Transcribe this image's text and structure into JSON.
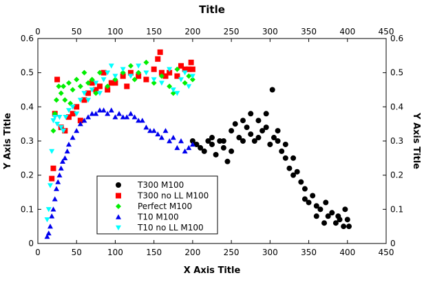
{
  "chart_data": {
    "type": "scatter",
    "title": "Title",
    "xlabel": "X Axis Title",
    "ylabel": "Y Axis Title",
    "y2label": "Y Axis Title",
    "xlim": [
      0,
      450
    ],
    "ylim": [
      0,
      0.6
    ],
    "x_ticks": [
      "0",
      "50",
      "100",
      "150",
      "200",
      "250",
      "300",
      "350",
      "400",
      "450"
    ],
    "x_top_ticks": [
      "0",
      "50",
      "100",
      "150",
      "200",
      "250",
      "300",
      "350",
      "400",
      "450"
    ],
    "y_ticks": [
      "0",
      "0.1",
      "0.2",
      "0.3",
      "0.4",
      "0.5",
      "0.6"
    ],
    "y_right_ticks": [
      "0",
      "0.1",
      "0.2",
      "0.3",
      "0.4",
      "0.5",
      "0.6"
    ],
    "grid": false,
    "legend_position": "lower-left",
    "series": [
      {
        "name": "T300 M100",
        "marker": "circle",
        "color": "#000000",
        "points": [
          [
            200,
            0.3
          ],
          [
            205,
            0.29
          ],
          [
            210,
            0.28
          ],
          [
            215,
            0.27
          ],
          [
            220,
            0.3
          ],
          [
            225,
            0.29
          ],
          [
            230,
            0.26
          ],
          [
            235,
            0.3
          ],
          [
            240,
            0.28
          ],
          [
            245,
            0.24
          ],
          [
            250,
            0.33
          ],
          [
            255,
            0.35
          ],
          [
            260,
            0.31
          ],
          [
            265,
            0.36
          ],
          [
            270,
            0.34
          ],
          [
            275,
            0.38
          ],
          [
            280,
            0.3
          ],
          [
            285,
            0.36
          ],
          [
            290,
            0.33
          ],
          [
            295,
            0.38
          ],
          [
            300,
            0.29
          ],
          [
            303,
            0.45
          ],
          [
            305,
            0.31
          ],
          [
            310,
            0.3
          ],
          [
            315,
            0.27
          ],
          [
            320,
            0.25
          ],
          [
            325,
            0.22
          ],
          [
            330,
            0.25
          ],
          [
            335,
            0.21
          ],
          [
            340,
            0.18
          ],
          [
            345,
            0.16
          ],
          [
            350,
            0.12
          ],
          [
            355,
            0.14
          ],
          [
            360,
            0.08
          ],
          [
            365,
            0.1
          ],
          [
            370,
            0.06
          ],
          [
            375,
            0.08
          ],
          [
            380,
            0.09
          ],
          [
            385,
            0.06
          ],
          [
            390,
            0.07
          ],
          [
            395,
            0.05
          ],
          [
            400,
            0.07
          ],
          [
            402,
            0.05
          ],
          [
            225,
            0.31
          ],
          [
            240,
            0.3
          ],
          [
            250,
            0.27
          ],
          [
            265,
            0.3
          ],
          [
            275,
            0.32
          ],
          [
            285,
            0.31
          ],
          [
            295,
            0.34
          ],
          [
            310,
            0.33
          ],
          [
            320,
            0.29
          ],
          [
            330,
            0.2
          ],
          [
            345,
            0.13
          ],
          [
            360,
            0.11
          ],
          [
            372,
            0.12
          ],
          [
            388,
            0.08
          ],
          [
            397,
            0.1
          ]
        ]
      },
      {
        "name": "T300 no LL M100",
        "marker": "square",
        "color": "#ff0000",
        "points": [
          [
            18,
            0.19
          ],
          [
            20,
            0.22
          ],
          [
            22,
            0.38
          ],
          [
            25,
            0.48
          ],
          [
            30,
            0.34
          ],
          [
            35,
            0.33
          ],
          [
            40,
            0.37
          ],
          [
            45,
            0.38
          ],
          [
            50,
            0.4
          ],
          [
            55,
            0.36
          ],
          [
            60,
            0.42
          ],
          [
            65,
            0.44
          ],
          [
            70,
            0.47
          ],
          [
            75,
            0.45
          ],
          [
            80,
            0.46
          ],
          [
            85,
            0.5
          ],
          [
            90,
            0.45
          ],
          [
            95,
            0.47
          ],
          [
            100,
            0.47
          ],
          [
            110,
            0.49
          ],
          [
            115,
            0.46
          ],
          [
            120,
            0.5
          ],
          [
            130,
            0.49
          ],
          [
            140,
            0.48
          ],
          [
            150,
            0.51
          ],
          [
            155,
            0.54
          ],
          [
            158,
            0.56
          ],
          [
            160,
            0.5
          ],
          [
            165,
            0.49
          ],
          [
            170,
            0.5
          ],
          [
            180,
            0.49
          ],
          [
            185,
            0.52
          ],
          [
            190,
            0.51
          ],
          [
            195,
            0.51
          ],
          [
            198,
            0.53
          ],
          [
            200,
            0.51
          ]
        ]
      },
      {
        "name": "Perfect M100",
        "marker": "diamond",
        "color": "#00ee00",
        "points": [
          [
            20,
            0.33
          ],
          [
            22,
            0.38
          ],
          [
            24,
            0.42
          ],
          [
            27,
            0.46
          ],
          [
            30,
            0.44
          ],
          [
            33,
            0.46
          ],
          [
            35,
            0.42
          ],
          [
            40,
            0.47
          ],
          [
            42,
            0.41
          ],
          [
            45,
            0.45
          ],
          [
            50,
            0.48
          ],
          [
            55,
            0.46
          ],
          [
            60,
            0.5
          ],
          [
            65,
            0.47
          ],
          [
            70,
            0.48
          ],
          [
            75,
            0.44
          ],
          [
            80,
            0.5
          ],
          [
            90,
            0.46
          ],
          [
            100,
            0.48
          ],
          [
            110,
            0.5
          ],
          [
            120,
            0.52
          ],
          [
            125,
            0.48
          ],
          [
            130,
            0.5
          ],
          [
            140,
            0.53
          ],
          [
            150,
            0.47
          ],
          [
            160,
            0.49
          ],
          [
            170,
            0.46
          ],
          [
            175,
            0.44
          ],
          [
            180,
            0.51
          ],
          [
            190,
            0.47
          ],
          [
            195,
            0.49
          ],
          [
            200,
            0.48
          ]
        ]
      },
      {
        "name": "T10 M100",
        "marker": "triangle",
        "color": "#0000ee",
        "points": [
          [
            12,
            0.02
          ],
          [
            14,
            0.03
          ],
          [
            16,
            0.05
          ],
          [
            18,
            0.08
          ],
          [
            20,
            0.1
          ],
          [
            22,
            0.13
          ],
          [
            24,
            0.16
          ],
          [
            26,
            0.18
          ],
          [
            28,
            0.2
          ],
          [
            30,
            0.22
          ],
          [
            32,
            0.24
          ],
          [
            35,
            0.25
          ],
          [
            38,
            0.27
          ],
          [
            40,
            0.29
          ],
          [
            45,
            0.31
          ],
          [
            50,
            0.33
          ],
          [
            55,
            0.35
          ],
          [
            60,
            0.36
          ],
          [
            65,
            0.37
          ],
          [
            70,
            0.38
          ],
          [
            75,
            0.38
          ],
          [
            80,
            0.39
          ],
          [
            85,
            0.39
          ],
          [
            90,
            0.38
          ],
          [
            95,
            0.39
          ],
          [
            100,
            0.37
          ],
          [
            105,
            0.38
          ],
          [
            110,
            0.37
          ],
          [
            115,
            0.37
          ],
          [
            120,
            0.38
          ],
          [
            125,
            0.37
          ],
          [
            130,
            0.36
          ],
          [
            135,
            0.36
          ],
          [
            140,
            0.34
          ],
          [
            145,
            0.33
          ],
          [
            150,
            0.33
          ],
          [
            155,
            0.32
          ],
          [
            160,
            0.31
          ],
          [
            165,
            0.33
          ],
          [
            170,
            0.3
          ],
          [
            175,
            0.31
          ],
          [
            180,
            0.28
          ],
          [
            185,
            0.3
          ],
          [
            190,
            0.27
          ],
          [
            195,
            0.28
          ],
          [
            200,
            0.29
          ]
        ]
      },
      {
        "name": "T10 no LL M100",
        "marker": "invtriangle",
        "color": "#00ffff",
        "points": [
          [
            12,
            0.07
          ],
          [
            14,
            0.1
          ],
          [
            16,
            0.17
          ],
          [
            18,
            0.27
          ],
          [
            20,
            0.36
          ],
          [
            22,
            0.37
          ],
          [
            25,
            0.35
          ],
          [
            28,
            0.37
          ],
          [
            30,
            0.34
          ],
          [
            33,
            0.33
          ],
          [
            36,
            0.37
          ],
          [
            40,
            0.39
          ],
          [
            45,
            0.4
          ],
          [
            50,
            0.38
          ],
          [
            55,
            0.42
          ],
          [
            60,
            0.44
          ],
          [
            65,
            0.42
          ],
          [
            70,
            0.45
          ],
          [
            75,
            0.47
          ],
          [
            80,
            0.44
          ],
          [
            85,
            0.48
          ],
          [
            90,
            0.5
          ],
          [
            95,
            0.52
          ],
          [
            100,
            0.49
          ],
          [
            110,
            0.51
          ],
          [
            120,
            0.49
          ],
          [
            130,
            0.52
          ],
          [
            140,
            0.5
          ],
          [
            150,
            0.48
          ],
          [
            160,
            0.47
          ],
          [
            170,
            0.51
          ],
          [
            175,
            0.45
          ],
          [
            180,
            0.44
          ],
          [
            185,
            0.48
          ],
          [
            190,
            0.5
          ],
          [
            195,
            0.46
          ],
          [
            200,
            0.49
          ]
        ]
      }
    ]
  }
}
